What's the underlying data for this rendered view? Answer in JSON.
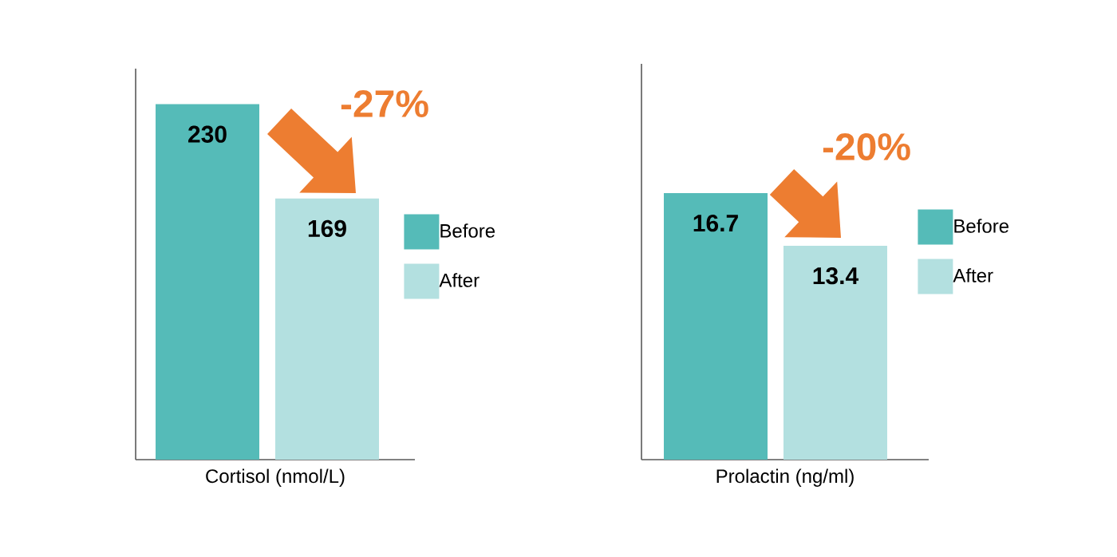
{
  "chart_data": [
    {
      "type": "bar",
      "xlabel": "Cortisol (nmol/L)",
      "categories": [
        null
      ],
      "ylim": [
        0,
        253
      ],
      "data_labels": true,
      "legend": "right",
      "annotations": [
        "-27%"
      ],
      "series": [
        {
          "name": "Before",
          "color": "#55bbb8",
          "values": [
            230
          ]
        },
        {
          "name": "After",
          "color": "#b3e0e0",
          "values": [
            169
          ]
        }
      ]
    },
    {
      "type": "bar",
      "xlabel": "Prolactin (ng/ml)",
      "categories": [
        null
      ],
      "ylim": [
        0,
        24.8
      ],
      "data_labels": true,
      "legend": "right",
      "annotations": [
        "-20%"
      ],
      "series": [
        {
          "name": "Before",
          "color": "#55bbb8",
          "values": [
            16.7
          ]
        },
        {
          "name": "After",
          "color": "#b3e0e0",
          "values": [
            13.4
          ]
        }
      ]
    }
  ]
}
